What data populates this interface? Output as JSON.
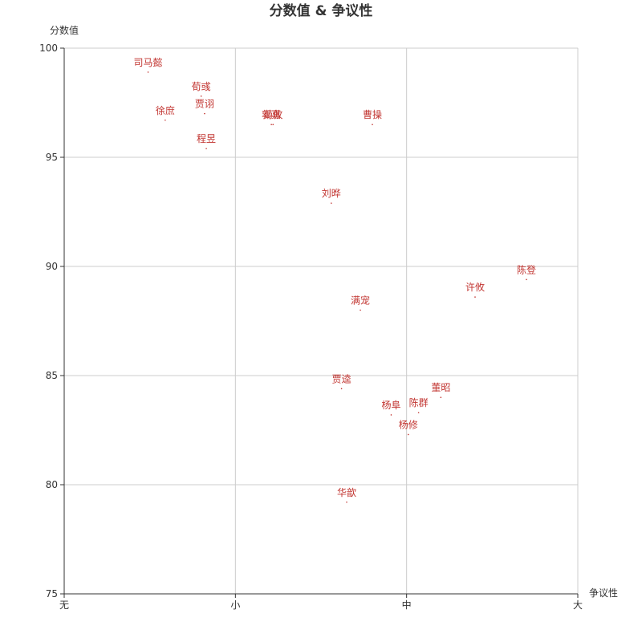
{
  "chart_data": {
    "type": "scatter",
    "title": "分数值 & 争议性",
    "xlabel": "争议性",
    "ylabel": "分数值",
    "x_categories": [
      "无",
      "小",
      "中",
      "大"
    ],
    "xlim": [
      0,
      3
    ],
    "ylim": [
      75,
      100
    ],
    "yticks": [
      75,
      80,
      85,
      90,
      95,
      100
    ],
    "grid": true,
    "point_color": "#c23531",
    "points": [
      {
        "label": "司马懿",
        "x": 0.49,
        "y": 98.9
      },
      {
        "label": "荀彧",
        "x": 0.8,
        "y": 97.8
      },
      {
        "label": "贾诩",
        "x": 0.82,
        "y": 97.0
      },
      {
        "label": "徐庶",
        "x": 0.59,
        "y": 96.7
      },
      {
        "label": "郭嘉",
        "x": 1.21,
        "y": 96.5
      },
      {
        "label": "荀攸",
        "x": 1.22,
        "y": 96.5
      },
      {
        "label": "曹操",
        "x": 1.8,
        "y": 96.5
      },
      {
        "label": "程昱",
        "x": 0.83,
        "y": 95.4
      },
      {
        "label": "刘晔",
        "x": 1.56,
        "y": 92.9
      },
      {
        "label": "陈登",
        "x": 2.7,
        "y": 89.4
      },
      {
        "label": "许攸",
        "x": 2.4,
        "y": 88.6
      },
      {
        "label": "满宠",
        "x": 1.73,
        "y": 88.0
      },
      {
        "label": "贾逵",
        "x": 1.62,
        "y": 84.4
      },
      {
        "label": "董昭",
        "x": 2.2,
        "y": 84.0
      },
      {
        "label": "杨阜",
        "x": 1.91,
        "y": 83.2
      },
      {
        "label": "陈群",
        "x": 2.07,
        "y": 83.3
      },
      {
        "label": "杨修",
        "x": 2.01,
        "y": 82.3
      },
      {
        "label": "华歆",
        "x": 1.65,
        "y": 79.2
      }
    ]
  }
}
